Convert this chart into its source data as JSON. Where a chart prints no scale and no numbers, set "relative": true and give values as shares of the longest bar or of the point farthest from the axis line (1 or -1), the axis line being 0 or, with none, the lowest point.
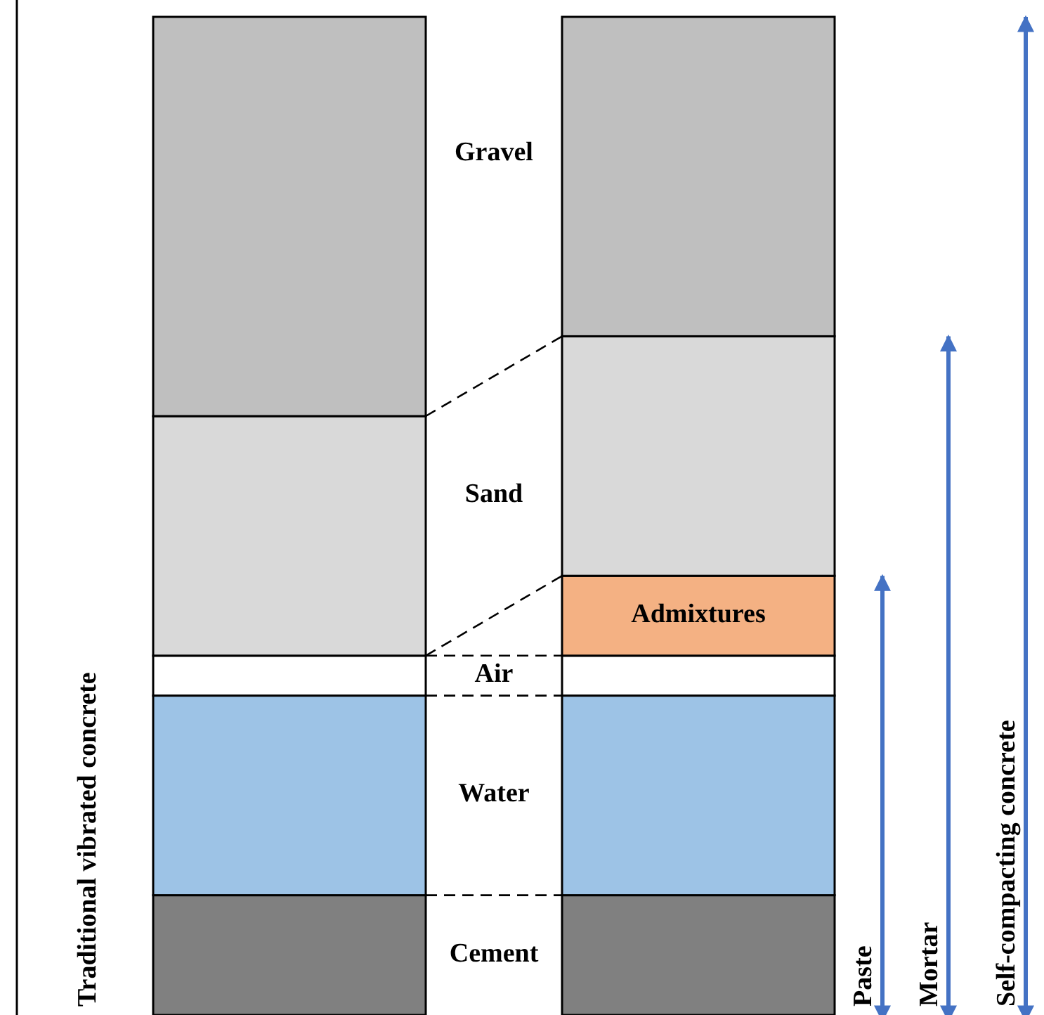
{
  "chart_data": {
    "type": "bar",
    "stacked": true,
    "relative": true,
    "categories": [
      null,
      null
    ],
    "series": [
      {
        "name": "Cement",
        "color": "#808080",
        "values": [
          0.12,
          0.12
        ]
      },
      {
        "name": "Water",
        "color": "#9dc3e6",
        "values": [
          0.2,
          0.2
        ]
      },
      {
        "name": "Air",
        "color": "#ffffff",
        "values": [
          0.04,
          0.04
        ]
      },
      {
        "name": "Admixtures",
        "color": "#f4b183",
        "values": [
          null,
          0.08
        ]
      },
      {
        "name": "Sand",
        "color": "#d9d9d9",
        "values": [
          0.24,
          0.24
        ]
      },
      {
        "name": "Gravel",
        "color": "#bfbfbf",
        "values": [
          0.4,
          0.32
        ]
      }
    ],
    "annotations": [
      "Traditional vibrated concrete",
      "Paste",
      "Mortar",
      "Self-compacting concrete"
    ]
  }
}
